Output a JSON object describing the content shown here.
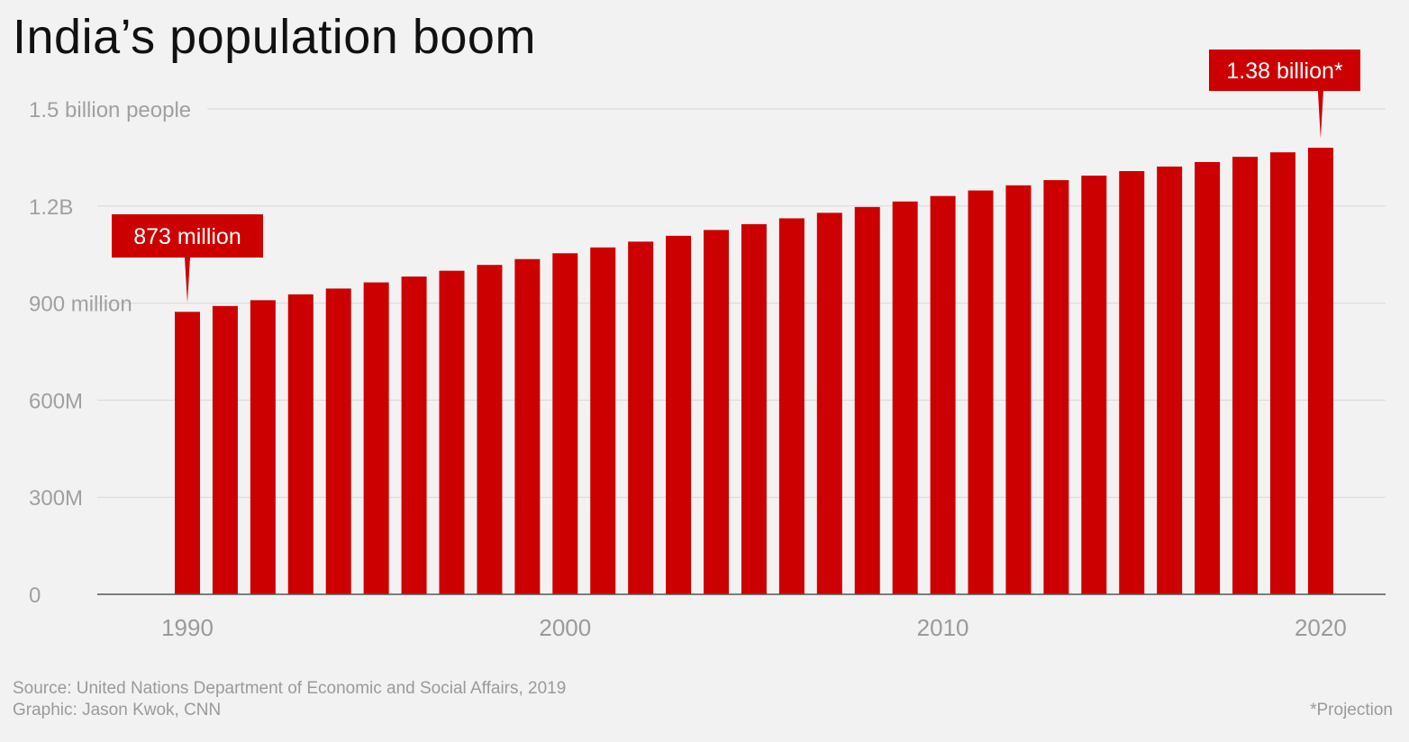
{
  "chart_data": {
    "type": "bar",
    "title": "India’s population boom",
    "x": [
      1990,
      1991,
      1992,
      1993,
      1994,
      1995,
      1996,
      1997,
      1998,
      1999,
      2000,
      2001,
      2002,
      2003,
      2004,
      2005,
      2006,
      2007,
      2008,
      2009,
      2010,
      2011,
      2012,
      2013,
      2014,
      2015,
      2016,
      2017,
      2018,
      2019,
      2020
    ],
    "values": [
      873,
      891,
      909,
      927,
      945,
      964,
      982,
      1000,
      1018,
      1036,
      1054,
      1072,
      1090,
      1108,
      1126,
      1144,
      1162,
      1179,
      1197,
      1214,
      1231,
      1248,
      1264,
      1280,
      1294,
      1308,
      1322,
      1336,
      1352,
      1366,
      1380
    ],
    "unit": "million",
    "ylim": [
      0,
      1500
    ],
    "y_ticks": [
      {
        "value": 0,
        "label": "0"
      },
      {
        "value": 300,
        "label": "300M"
      },
      {
        "value": 600,
        "label": "600M"
      },
      {
        "value": 900,
        "label": "900 million"
      },
      {
        "value": 1200,
        "label": "1.2B"
      },
      {
        "value": 1500,
        "label": "1.5 billion people"
      }
    ],
    "x_ticks": [
      1990,
      2000,
      2010,
      2020
    ],
    "grid": true,
    "bar_color": "#cc0000",
    "annotations": [
      {
        "x": 1990,
        "text": "873 million"
      },
      {
        "x": 2020,
        "text": "1.38 billion*"
      }
    ]
  },
  "footer": {
    "source": "Source: United Nations Department of Economic and Social Affairs, 2019",
    "graphic": "Graphic: Jason Kwok, CNN",
    "note": "*Projection"
  }
}
